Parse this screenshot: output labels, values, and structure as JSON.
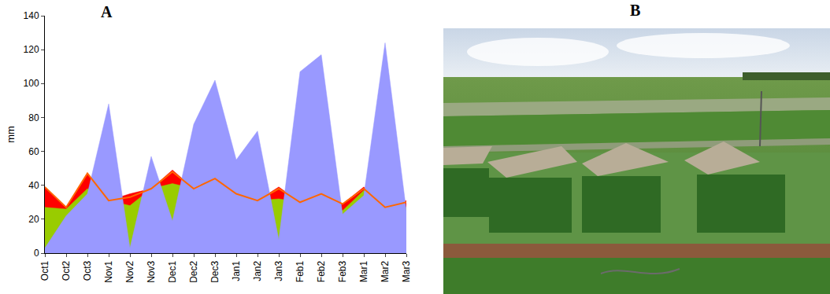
{
  "chart_data": {
    "type": "area",
    "y_label": "mm",
    "categories": [
      "Oct1",
      "Oct2",
      "Oct3",
      "Nov1",
      "Nov2",
      "Nov3",
      "Dec1",
      "Dec2",
      "Dec3",
      "Jan1",
      "Jan2",
      "Jan3",
      "Feb1",
      "Feb2",
      "Feb3",
      "Mar1",
      "Mar2",
      "Mar3"
    ],
    "series": [
      {
        "type": "area",
        "color": "#ff0000",
        "values": [
          39,
          27,
          47,
          31,
          35,
          38,
          49,
          38,
          44,
          35,
          31,
          39,
          30,
          35,
          29,
          39,
          27,
          31
        ]
      },
      {
        "type": "area",
        "color": "#99cc00",
        "values": [
          27,
          26,
          38,
          31,
          28,
          38,
          41,
          38,
          44,
          35,
          31,
          32,
          30,
          35,
          25,
          37,
          27,
          27
        ]
      },
      {
        "type": "area",
        "color": "#9999ff",
        "values": [
          3,
          22,
          35,
          88,
          3,
          57,
          19,
          76,
          102,
          55,
          72,
          8,
          107,
          117,
          23,
          34,
          124,
          25
        ]
      },
      {
        "type": "line",
        "color": "#ff6600",
        "values": [
          39,
          27,
          47,
          31,
          33,
          38,
          48,
          38,
          44,
          35,
          31,
          38,
          30,
          35,
          29,
          38,
          27,
          30
        ]
      }
    ],
    "ylim": [
      0,
      140
    ],
    "yticks": [
      0,
      20,
      40,
      60,
      80,
      100,
      120,
      140
    ],
    "grid": false
  },
  "panel_labels": [
    "A",
    "B"
  ]
}
